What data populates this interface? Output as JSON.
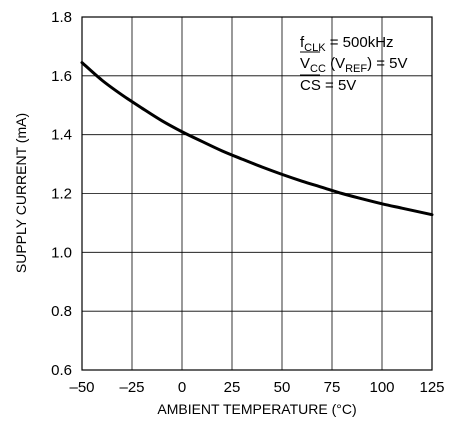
{
  "chart_data": {
    "type": "line",
    "title": "",
    "xlabel": "AMBIENT TEMPERATURE (°C)",
    "ylabel": "SUPPLY CURRENT (mA)",
    "xlim": [
      -50,
      125
    ],
    "ylim": [
      0.6,
      1.8
    ],
    "x_ticks": [
      -50,
      -25,
      0,
      25,
      50,
      75,
      100,
      125
    ],
    "y_ticks": [
      0.6,
      0.8,
      1.0,
      1.2,
      1.4,
      1.6,
      1.8
    ],
    "x_tick_labels": [
      "–50",
      "–25",
      "0",
      "25",
      "50",
      "75",
      "100",
      "125"
    ],
    "y_tick_labels": [
      "0.6",
      "0.8",
      "1.0",
      "1.2",
      "1.4",
      "1.6",
      "1.8"
    ],
    "grid": true,
    "series": [
      {
        "x": [
          -50,
          -40,
          -30,
          -20,
          -10,
          0,
          10,
          20,
          30,
          40,
          50,
          60,
          70,
          80,
          90,
          100,
          110,
          125
        ],
        "y": [
          1.645,
          1.585,
          1.535,
          1.49,
          1.447,
          1.41,
          1.377,
          1.345,
          1.317,
          1.29,
          1.265,
          1.242,
          1.221,
          1.2,
          1.182,
          1.165,
          1.15,
          1.128
        ],
        "color": "#000000"
      }
    ],
    "annotations": {
      "line1": {
        "main": "f",
        "sub": "CLK",
        "rest": " = 500kHz"
      },
      "line2": {
        "main": "V",
        "sub": "CC",
        "mid": " (V",
        "sub2": "REF",
        "rest": ") = 5V"
      },
      "line3": {
        "over": "CS",
        "rest": " = 5V"
      }
    }
  }
}
